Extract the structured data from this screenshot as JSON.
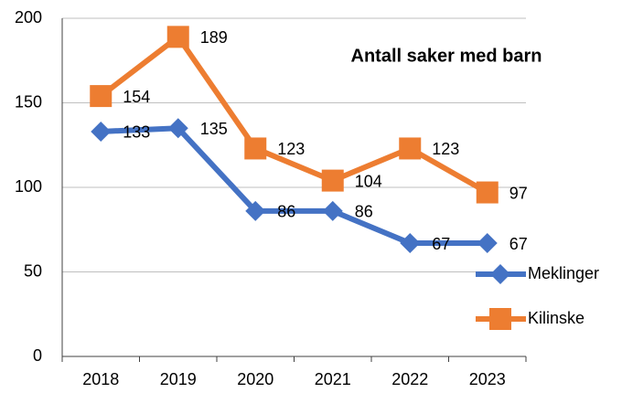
{
  "chart_data": {
    "type": "line",
    "title": "Antall saker med barn",
    "categories": [
      "2018",
      "2019",
      "2020",
      "2021",
      "2022",
      "2023"
    ],
    "series": [
      {
        "name": "Meklinger",
        "color": "#4472c4",
        "marker": "diamond",
        "values": [
          133,
          135,
          86,
          86,
          67,
          67
        ]
      },
      {
        "name": "Kilinske",
        "color": "#ed7d31",
        "marker": "square",
        "values": [
          154,
          189,
          123,
          104,
          123,
          97
        ]
      }
    ],
    "ylim": [
      0,
      200
    ],
    "yticks": [
      0,
      50,
      100,
      150,
      200
    ],
    "grid": true,
    "legend": "right"
  }
}
